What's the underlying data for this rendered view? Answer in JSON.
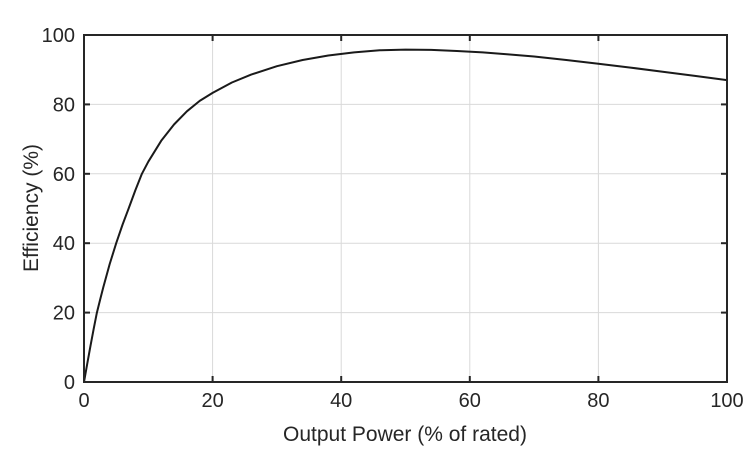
{
  "figure": {
    "background": "#ffffff"
  },
  "chart_data": {
    "type": "line",
    "title": "",
    "xlabel": "Output Power (% of rated)",
    "ylabel": "Efficiency (%)",
    "xlim": [
      0,
      100
    ],
    "ylim": [
      0,
      100
    ],
    "xticks": [
      "0",
      "20",
      "40",
      "60",
      "80",
      "100"
    ],
    "yticks": [
      "0",
      "20",
      "40",
      "60",
      "80",
      "100"
    ],
    "xtick_values": [
      0,
      20,
      40,
      60,
      80,
      100
    ],
    "ytick_values": [
      0,
      20,
      40,
      60,
      80,
      100
    ],
    "grid": true,
    "legend_position": "none",
    "style": {
      "grid_color": "#d9d9d9",
      "axis_color": "#262626",
      "tick_label_color": "#262626",
      "curve_color": "#1a1a1a",
      "curve_width": 2,
      "box": true,
      "tick_direction": "in"
    },
    "series": [
      {
        "name": "efficiency",
        "x": [
          0,
          0.5,
          1,
          1.5,
          2,
          2.5,
          3,
          4,
          5,
          6,
          7,
          8,
          9,
          10,
          12,
          14,
          16,
          18,
          20,
          23,
          26,
          30,
          34,
          38,
          42,
          46,
          50,
          54,
          58,
          62,
          66,
          70,
          75,
          80,
          85,
          90,
          95,
          100
        ],
        "y": [
          0,
          5.2,
          10.3,
          15.2,
          20,
          23.7,
          27.3,
          34,
          40,
          45.4,
          50.3,
          55.3,
          60,
          63.5,
          69.5,
          74.2,
          78,
          81,
          83.3,
          86.3,
          88.6,
          91,
          92.8,
          94.1,
          95,
          95.6,
          95.8,
          95.7,
          95.4,
          95,
          94.4,
          93.8,
          92.8,
          91.7,
          90.6,
          89.4,
          88.2,
          87
        ]
      }
    ]
  }
}
